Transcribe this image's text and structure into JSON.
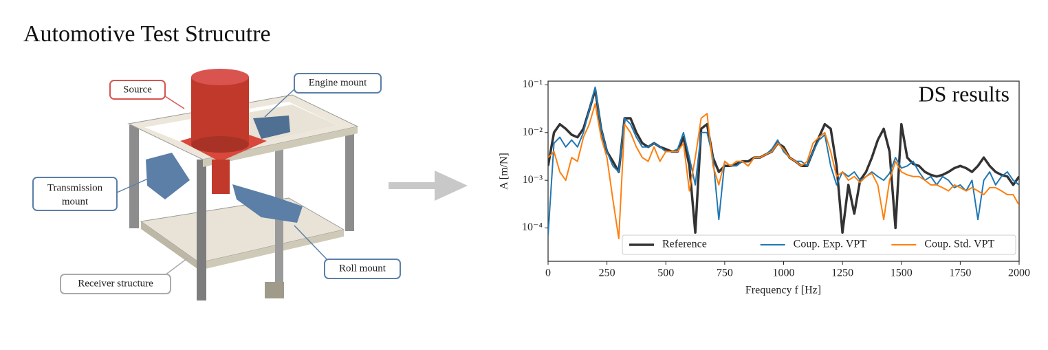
{
  "title": "Automotive Test Strucutre",
  "diagram": {
    "source": "Source",
    "engine_mount": "Engine mount",
    "transmission_mount": [
      "Transmission",
      "mount"
    ],
    "roll_mount": "Roll mount",
    "receiver": "Receiver structure"
  },
  "chart_data": {
    "type": "line",
    "title": "DS results",
    "xlabel": "Frequency f [Hz]",
    "ylabel": "A [m/N]",
    "log_y": true,
    "legend": "lower right",
    "xlim": [
      0,
      2000
    ],
    "xticks": [
      0,
      250,
      500,
      750,
      1000,
      1250,
      1500,
      1750,
      2000
    ],
    "ylim": [
      2e-05,
      0.12
    ],
    "yticks": [
      {
        "value": 0.0001,
        "label": "10⁻⁴"
      },
      {
        "value": 0.001,
        "label": "10⁻³"
      },
      {
        "value": 0.01,
        "label": "10⁻²"
      },
      {
        "value": 0.1,
        "label": "10⁻¹"
      }
    ],
    "x": [
      0,
      25,
      50,
      75,
      100,
      125,
      150,
      175,
      200,
      225,
      250,
      275,
      300,
      325,
      350,
      375,
      400,
      425,
      450,
      475,
      500,
      525,
      550,
      575,
      600,
      625,
      650,
      675,
      700,
      725,
      750,
      775,
      800,
      825,
      850,
      875,
      900,
      925,
      950,
      975,
      1000,
      1025,
      1050,
      1075,
      1100,
      1125,
      1150,
      1175,
      1200,
      1225,
      1250,
      1275,
      1300,
      1325,
      1350,
      1375,
      1400,
      1425,
      1450,
      1475,
      1500,
      1525,
      1550,
      1575,
      1600,
      1625,
      1650,
      1675,
      1700,
      1725,
      1750,
      1775,
      1800,
      1825,
      1850,
      1875,
      1900,
      1925,
      1950,
      1975,
      2000
    ],
    "series": [
      {
        "name": "Reference",
        "color": "#333333",
        "values": [
          0.002,
          0.01,
          0.015,
          0.012,
          0.009,
          0.008,
          0.012,
          0.03,
          0.08,
          0.012,
          0.004,
          0.0025,
          0.0015,
          0.02,
          0.02,
          0.01,
          0.006,
          0.005,
          0.006,
          0.005,
          0.0045,
          0.004,
          0.004,
          0.008,
          0.002,
          8e-05,
          0.012,
          0.015,
          0.003,
          0.0015,
          0.002,
          0.002,
          0.0022,
          0.0025,
          0.0025,
          0.003,
          0.003,
          0.0035,
          0.004,
          0.006,
          0.005,
          0.003,
          0.0025,
          0.002,
          0.002,
          0.004,
          0.008,
          0.015,
          0.012,
          0.002,
          8e-05,
          0.0008,
          0.0002,
          0.001,
          0.0015,
          0.003,
          0.007,
          0.012,
          0.004,
          0.0001,
          0.015,
          0.003,
          0.0022,
          0.002,
          0.0015,
          0.0013,
          0.0012,
          0.0013,
          0.0015,
          0.0018,
          0.002,
          0.0018,
          0.0015,
          0.002,
          0.003,
          0.002,
          0.0015,
          0.0013,
          0.0012,
          0.0008,
          0.0012
        ]
      },
      {
        "name": "Coup. Exp. VPT",
        "color": "#1f77b4",
        "values": [
          7e-05,
          0.006,
          0.008,
          0.005,
          0.007,
          0.005,
          0.01,
          0.03,
          0.09,
          0.012,
          0.004,
          0.002,
          0.0015,
          0.02,
          0.015,
          0.008,
          0.005,
          0.005,
          0.006,
          0.005,
          0.004,
          0.004,
          0.0045,
          0.01,
          0.003,
          0.0008,
          0.01,
          0.01,
          0.003,
          0.00015,
          0.0025,
          0.002,
          0.002,
          0.0025,
          0.002,
          0.003,
          0.003,
          0.0035,
          0.0045,
          0.007,
          0.004,
          0.003,
          0.0025,
          0.0025,
          0.002,
          0.004,
          0.007,
          0.009,
          0.002,
          0.0008,
          0.0015,
          0.0012,
          0.0015,
          0.001,
          0.0012,
          0.0015,
          0.0012,
          0.001,
          0.0014,
          0.003,
          0.0018,
          0.002,
          0.0025,
          0.0015,
          0.001,
          0.0012,
          0.0008,
          0.0012,
          0.001,
          0.0007,
          0.0008,
          0.0006,
          0.001,
          0.00015,
          0.001,
          0.0015,
          0.0008,
          0.0012,
          0.0015,
          0.001,
          0.0008
        ]
      },
      {
        "name": "Coup. Std. VPT",
        "color": "#ff7f0e",
        "values": [
          0.003,
          0.004,
          0.0015,
          0.001,
          0.003,
          0.0025,
          0.008,
          0.015,
          0.04,
          0.008,
          0.003,
          0.0004,
          6e-05,
          0.015,
          0.01,
          0.005,
          0.003,
          0.0025,
          0.005,
          0.0025,
          0.004,
          0.004,
          0.004,
          0.006,
          0.0006,
          0.003,
          0.02,
          0.025,
          0.002,
          0.0008,
          0.0025,
          0.002,
          0.0025,
          0.0025,
          0.002,
          0.003,
          0.003,
          0.0035,
          0.004,
          0.006,
          0.0045,
          0.003,
          0.0025,
          0.002,
          0.0025,
          0.006,
          0.008,
          0.01,
          0.004,
          0.0012,
          0.0015,
          0.001,
          0.0012,
          0.0009,
          0.0012,
          0.0014,
          0.0008,
          0.00015,
          0.001,
          0.0025,
          0.0015,
          0.0013,
          0.0012,
          0.0012,
          0.001,
          0.0008,
          0.0008,
          0.0007,
          0.0006,
          0.0008,
          0.0007,
          0.0006,
          0.0007,
          0.0006,
          0.0005,
          0.0007,
          0.0007,
          0.0006,
          0.0005,
          0.0005,
          0.0003
        ]
      }
    ]
  }
}
